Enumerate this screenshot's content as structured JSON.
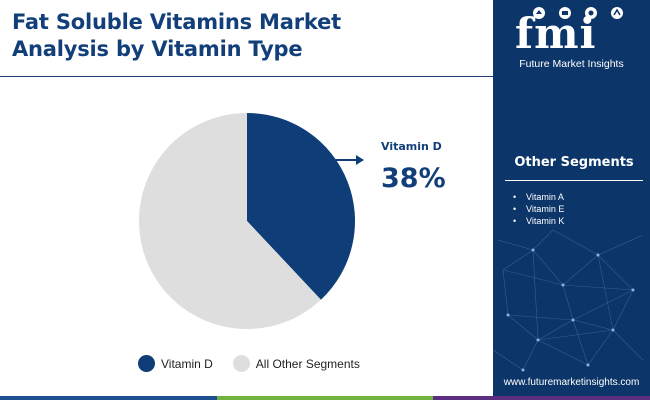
{
  "header": {
    "title_line1": "Fat Soluble Vitamins Market",
    "title_line2": "Analysis by Vitamin Type"
  },
  "logo": {
    "letters": "fmi",
    "name": "Future Market Insights"
  },
  "sidebar": {
    "other_title": "Other Segments",
    "bullet": "•",
    "items": [
      "Vitamin A",
      "Vitamin E",
      "Vitamin K"
    ],
    "website": "www.futuremarketinsights.com"
  },
  "callout": {
    "label": "Vitamin D",
    "value": "38%"
  },
  "colors": {
    "primary": "#0e3d78",
    "other": "#dedede",
    "title": "#123f7a",
    "panel": "#0c3569",
    "bar": [
      "#1e4f8f",
      "#71b340",
      "#5c2e82"
    ]
  },
  "chart_data": {
    "type": "pie",
    "title": "",
    "start_angle_deg": 0,
    "direction": "clockwise",
    "slices": [
      {
        "label": "Vitamin D",
        "value": 38,
        "color": "#0e3d78"
      },
      {
        "label": "All Other Segments",
        "value": 62,
        "color": "#dedede"
      }
    ],
    "legend": {
      "position": "bottom",
      "entries": [
        "Vitamin D",
        "All Other Segments"
      ]
    }
  }
}
